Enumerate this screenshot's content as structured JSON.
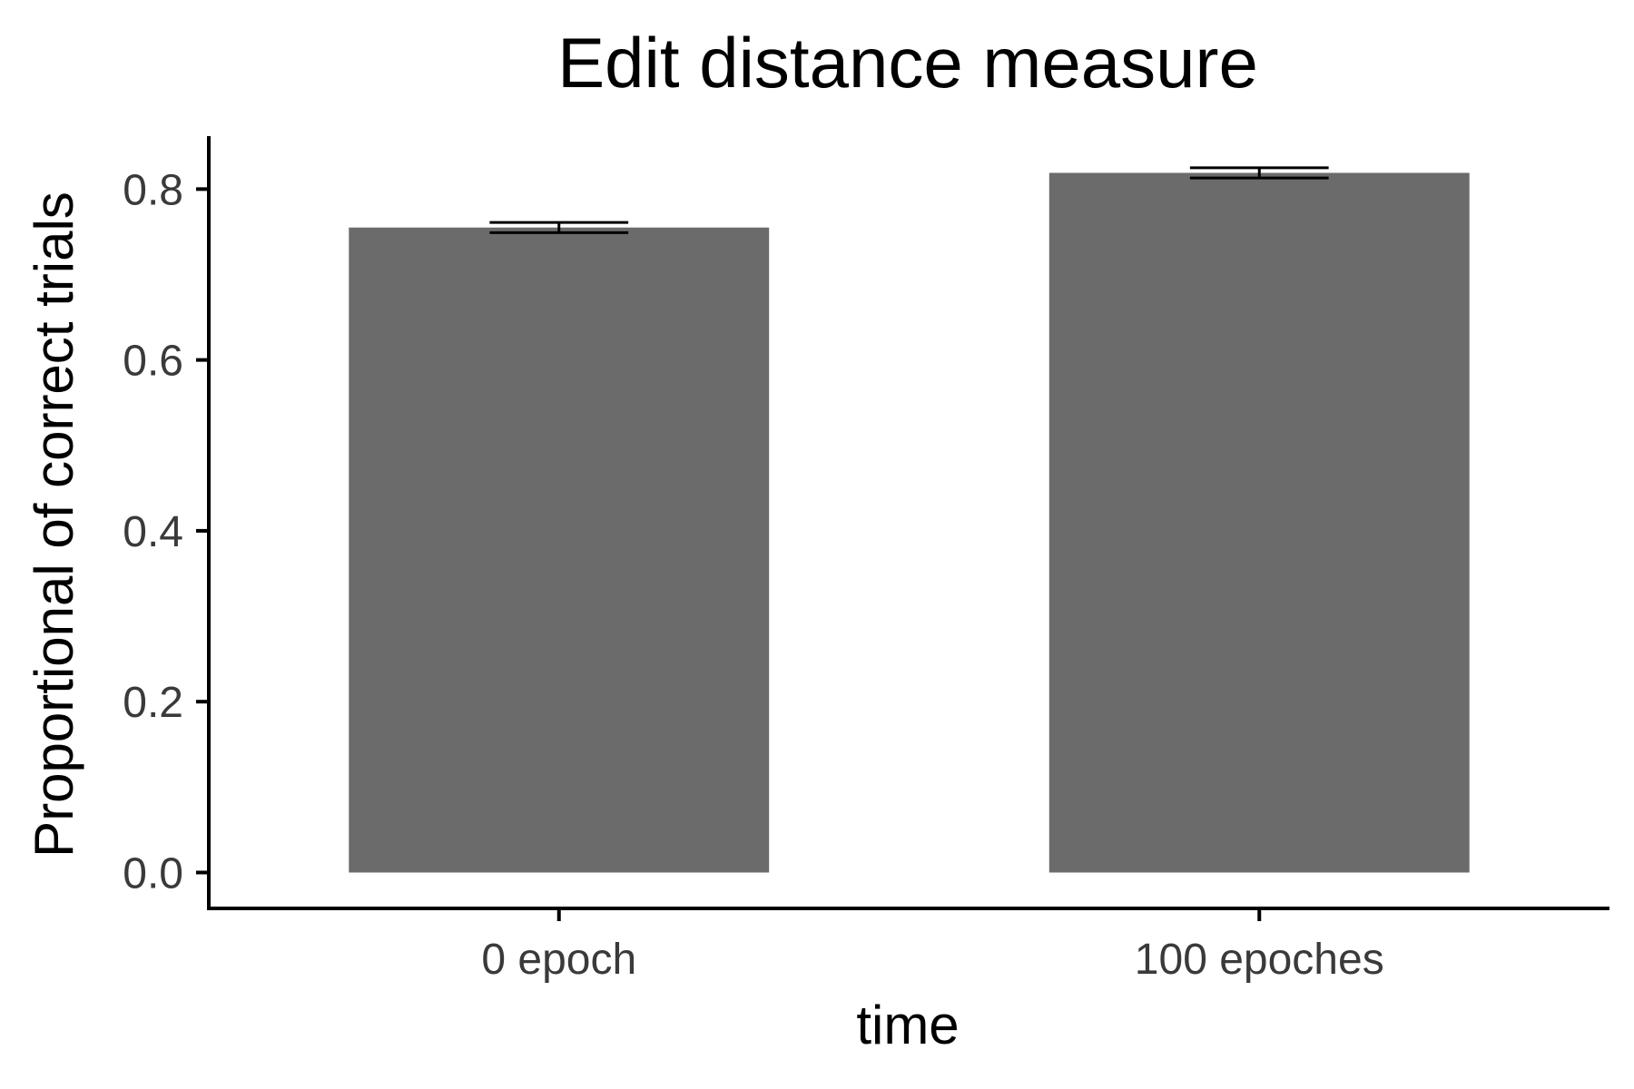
{
  "chart_data": {
    "type": "bar",
    "title": "Edit distance measure",
    "xlabel": "time",
    "ylabel": "Proportional of correct trials",
    "categories": [
      "0 epoch",
      "100 epoches"
    ],
    "values": [
      0.755,
      0.819
    ],
    "error": [
      0.006,
      0.006
    ],
    "ylim": [
      -0.042,
      0.862
    ],
    "yticks": [
      0.0,
      0.2,
      0.4,
      0.6,
      0.8
    ],
    "ytick_labels": [
      "0.0",
      "0.2",
      "0.4",
      "0.6",
      "0.8"
    ],
    "bar_color": "#6b6b6b",
    "grid": false,
    "legend": "none"
  }
}
